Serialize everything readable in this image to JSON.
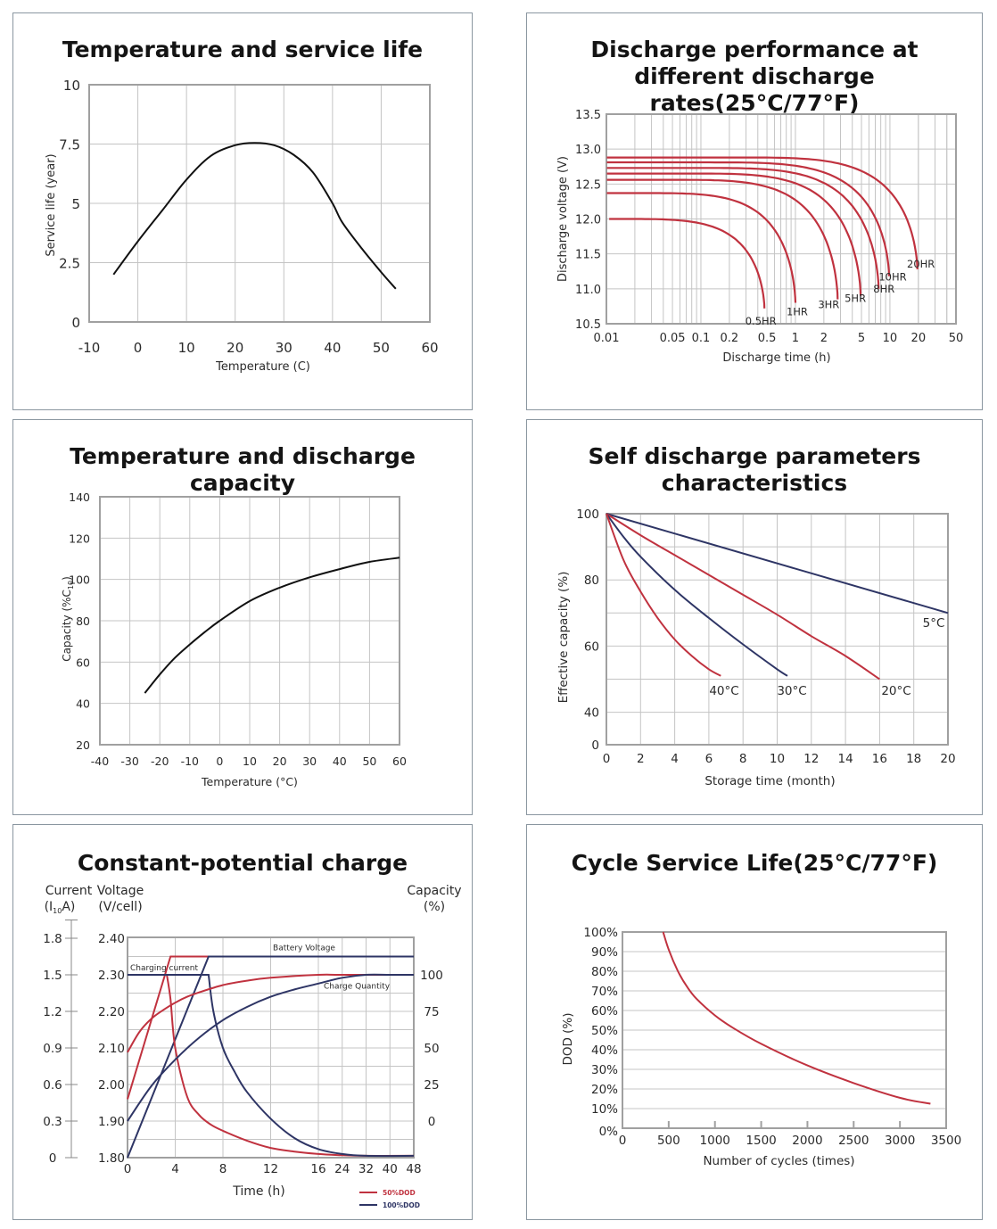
{
  "colors": {
    "red": "#c0323f",
    "navy": "#2e3565",
    "grid": "#c4c4c4",
    "frame": "#a0a0a0",
    "black": "#111111"
  },
  "chart_data": [
    {
      "id": "temp_life",
      "type": "line",
      "title": "Temperature and service life",
      "xlabel": "Temperature (C)",
      "ylabel": "Service life (year)",
      "xlim": [
        -10,
        60
      ],
      "ylim": [
        0,
        10
      ],
      "xticks": [
        "-10",
        "0",
        "10",
        "20",
        "30",
        "40",
        "50",
        "60"
      ],
      "yticks": [
        "0",
        "2.5",
        "5",
        "7.5",
        "10"
      ],
      "grid": true,
      "series": [
        {
          "name": "Service life",
          "color": "black",
          "x": [
            -5,
            0,
            5,
            10,
            15,
            20,
            24,
            28,
            32,
            36,
            40,
            42,
            46,
            50,
            53
          ],
          "y": [
            2.0,
            3.4,
            4.7,
            6.0,
            7.0,
            7.45,
            7.55,
            7.45,
            7.05,
            6.3,
            5.0,
            4.2,
            3.1,
            2.1,
            1.4
          ]
        }
      ]
    },
    {
      "id": "discharge_rates",
      "type": "line",
      "title": "Discharge performance at different discharge rates(25°C/77°F)",
      "title_lines": [
        "Discharge performance at",
        "different discharge rates(25°C/77°F)"
      ],
      "xlabel": "Discharge time (h)",
      "ylabel": "Discharge voltage (V)",
      "xscale": "log",
      "xlim": [
        0.01,
        50
      ],
      "ylim": [
        10.5,
        13.5
      ],
      "xticks": [
        0.01,
        0.05,
        0.1,
        0.2,
        0.5,
        1,
        2,
        5,
        10,
        20,
        50
      ],
      "xtick_labels": [
        "0.01",
        "0.05",
        "0.1",
        "0.2",
        "0.5",
        "1",
        "2",
        "5",
        "10",
        "20",
        "50"
      ],
      "yticks": [
        "10.5",
        "11.0",
        "11.5",
        "12.0",
        "12.5",
        "13.0",
        "13.5"
      ],
      "grid": true,
      "series": [
        {
          "name": "0.5HR",
          "flat_v": 12.0,
          "end_t": 0.47,
          "end_v": 10.72,
          "knee_t": 0.06
        },
        {
          "name": "1HR",
          "flat_v": 12.37,
          "end_t": 1.0,
          "end_v": 10.8,
          "knee_t": 0.1
        },
        {
          "name": "3HR",
          "flat_v": 12.56,
          "end_t": 2.8,
          "end_v": 10.85,
          "knee_t": 0.2
        },
        {
          "name": "5HR",
          "flat_v": 12.65,
          "end_t": 4.9,
          "end_v": 10.9,
          "knee_t": 0.3
        },
        {
          "name": "8HR",
          "flat_v": 12.73,
          "end_t": 7.6,
          "end_v": 11.0,
          "knee_t": 0.4
        },
        {
          "name": "10HR",
          "flat_v": 12.81,
          "end_t": 9.8,
          "end_v": 11.18,
          "knee_t": 0.5
        },
        {
          "name": "20HR",
          "flat_v": 12.88,
          "end_t": 19.5,
          "end_v": 11.28,
          "knee_t": 1.0
        }
      ]
    },
    {
      "id": "temp_capacity",
      "type": "line",
      "title": "Temperature and discharge capacity",
      "xlabel": "Temperature (°C)",
      "ylabel": "Capacity (%C10)",
      "ylabel_main": "Capacity (%C",
      "ylabel_sub": "10",
      "ylabel_end": ")",
      "xlim": [
        -40,
        60
      ],
      "ylim": [
        20,
        140
      ],
      "xticks": [
        "-40",
        "-30",
        "-20",
        "-10",
        "0",
        "10",
        "20",
        "30",
        "40",
        "50",
        "60"
      ],
      "yticks": [
        "20",
        "40",
        "60",
        "80",
        "100",
        "120",
        "140"
      ],
      "grid": true,
      "series": [
        {
          "name": "Capacity",
          "color": "black",
          "x": [
            -25,
            -20,
            -15,
            -10,
            -5,
            0,
            10,
            20,
            30,
            40,
            50,
            60
          ],
          "y": [
            45,
            54,
            62,
            68.5,
            74.5,
            80,
            89.5,
            96,
            101,
            105,
            108.5,
            110.5
          ]
        }
      ]
    },
    {
      "id": "self_discharge",
      "type": "line",
      "title": "Self discharge parameters characteristics",
      "xlabel": "Storage time (month)",
      "ylabel": "Effective capacity (%)",
      "xlim": [
        0,
        20
      ],
      "ylim": [
        0,
        100
      ],
      "xticks": [
        "0",
        "2",
        "4",
        "6",
        "8",
        "10",
        "12",
        "14",
        "16",
        "18",
        "20"
      ],
      "yticks": [
        "0",
        "40",
        "60",
        "80",
        "100"
      ],
      "y_axis_note": "axis break: 0 directly below 40",
      "grid": true,
      "series": [
        {
          "name": "5°C",
          "color": "navy",
          "x": [
            0,
            20
          ],
          "y": [
            100,
            70
          ]
        },
        {
          "name": "20°C",
          "color": "red",
          "x": [
            0,
            2,
            4,
            6,
            8,
            10,
            12,
            14,
            16
          ],
          "y": [
            100,
            93.5,
            87.5,
            81.5,
            75.5,
            69.5,
            63,
            57,
            50
          ]
        },
        {
          "name": "30°C",
          "color": "navy",
          "x": [
            0,
            1,
            2,
            4,
            6,
            8,
            10,
            10.6
          ],
          "y": [
            100,
            93,
            87,
            77,
            68.5,
            60.5,
            53,
            51
          ]
        },
        {
          "name": "40°C",
          "color": "red",
          "x": [
            0,
            1,
            2,
            3,
            4,
            5,
            6,
            6.7
          ],
          "y": [
            100,
            86,
            76.5,
            68.5,
            62,
            57,
            53,
            51
          ]
        }
      ]
    },
    {
      "id": "constant_potential",
      "type": "line",
      "title": "Constant-potential charge",
      "xlabel": "Time (h)",
      "left_axis1": {
        "label_line1": "Current",
        "label_line2_pre": "(I",
        "label_line2_sub": "10",
        "label_line2_post": "A)",
        "ticks": [
          "0",
          "0.3",
          "0.6",
          "0.9",
          "1.2",
          "1.5",
          "1.8"
        ],
        "range": [
          0,
          1.8
        ]
      },
      "left_axis2": {
        "label_line1": "Voltage",
        "label_line2": "(V/cell)",
        "ticks": [
          "1.80",
          "1.90",
          "2.00",
          "2.10",
          "2.20",
          "2.30",
          "2.40"
        ],
        "range": [
          1.8,
          2.4
        ]
      },
      "right_axis": {
        "label_line1": "Capacity",
        "label_line2": "(%)",
        "ticks": [
          "0",
          "25",
          "50",
          "75",
          "100"
        ]
      },
      "xticks": [
        "0",
        "4",
        "8",
        "12",
        "16",
        "24",
        "32",
        "40",
        "48"
      ],
      "annotations": [
        "Battery Voltage",
        "Charging current",
        "Charge Quantity"
      ],
      "legend": [
        {
          "label": "50%DOD",
          "color": "red"
        },
        {
          "label": "100%DOD",
          "color": "navy"
        }
      ],
      "legend_position": "bottom-right",
      "grid": true,
      "series": [
        {
          "name": "Battery Voltage 50%DOD",
          "color": "red",
          "unit": "V/cell",
          "x": [
            0,
            3.6,
            6.8
          ],
          "y": [
            1.96,
            2.35,
            2.35
          ]
        },
        {
          "name": "Battery Voltage 100%DOD",
          "color": "navy",
          "unit": "V/cell",
          "x": [
            0,
            6.8,
            48
          ],
          "y": [
            1.8,
            2.35,
            2.35
          ]
        },
        {
          "name": "Charging current 50%DOD",
          "color": "red",
          "unit": "I10A",
          "x": [
            0,
            3.3,
            3.6,
            4,
            5,
            6,
            7,
            8,
            10,
            12,
            14,
            16,
            24,
            32,
            48
          ],
          "y": [
            1.5,
            1.5,
            1.3,
            0.9,
            0.5,
            0.35,
            0.27,
            0.22,
            0.14,
            0.08,
            0.05,
            0.03,
            0.02,
            0.015,
            0.015
          ]
        },
        {
          "name": "Charging current 100%DOD",
          "color": "navy",
          "unit": "I10A",
          "x": [
            0,
            6.8,
            7.2,
            8,
            9,
            10,
            12,
            14,
            16,
            24,
            32,
            48
          ],
          "y": [
            1.5,
            1.5,
            1.2,
            0.9,
            0.7,
            0.54,
            0.32,
            0.16,
            0.07,
            0.03,
            0.015,
            0.015
          ]
        },
        {
          "name": "Charge Quantity 50%DOD",
          "color": "red",
          "unit": "%",
          "x": [
            0,
            1,
            2,
            3,
            4,
            5,
            6,
            8,
            10,
            12,
            16,
            24,
            48
          ],
          "y": [
            47,
            61,
            70,
            76,
            81,
            85,
            88,
            93,
            96,
            98,
            100,
            100,
            100
          ]
        },
        {
          "name": "Charge Quantity 100%DOD",
          "color": "navy",
          "unit": "%",
          "x": [
            0,
            2,
            4,
            6,
            8,
            10,
            12,
            14,
            16,
            24,
            32,
            40,
            48
          ],
          "y": [
            0,
            24,
            42,
            57,
            69,
            78,
            85,
            90,
            94,
            98,
            100,
            100,
            100
          ]
        }
      ]
    },
    {
      "id": "cycle_life",
      "type": "line",
      "title": "Cycle Service Life(25°C/77°F)",
      "xlabel": "Number of cycles (times)",
      "ylabel": "DOD (%)",
      "xlim": [
        0,
        3500
      ],
      "ylim": [
        0,
        100
      ],
      "xticks": [
        "0",
        "500",
        "1000",
        "1500",
        "2000",
        "2500",
        "3000",
        "3500"
      ],
      "yticks": [
        "0%",
        "10%",
        "20%",
        "30%",
        "40%",
        "50%",
        "60%",
        "70%",
        "80%",
        "90%",
        "100%"
      ],
      "grid": true,
      "series": [
        {
          "name": "DOD vs cycles",
          "color": "red",
          "x": [
            440,
            500,
            600,
            700,
            800,
            1000,
            1200,
            1500,
            2000,
            2500,
            3000,
            3330
          ],
          "y": [
            100,
            91,
            80,
            72,
            66,
            57.5,
            51,
            43,
            32,
            23,
            15.5,
            12.5
          ]
        }
      ]
    }
  ]
}
